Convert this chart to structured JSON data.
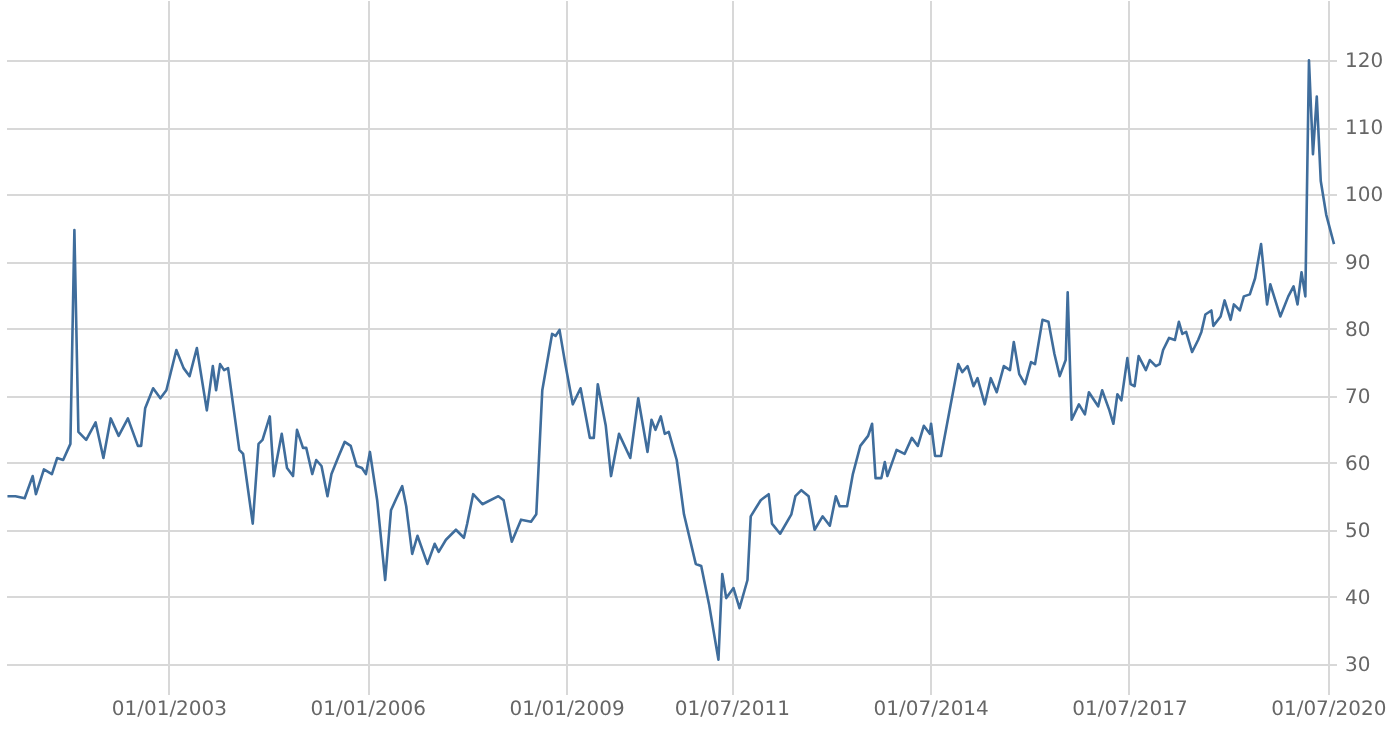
{
  "chart_data": {
    "type": "line",
    "x": [
      "2000-07-28",
      "2000-09-10",
      "2000-10-31",
      "2000-12-14",
      "2001-01-01",
      "2001-02-14",
      "2001-03-30",
      "2001-04-28",
      "2001-05-31",
      "2001-07-10",
      "2001-08-01",
      "2001-08-23",
      "2001-10-05",
      "2001-11-26",
      "2002-01-08",
      "2002-02-17",
      "2002-04-02",
      "2002-05-23",
      "2002-07-17",
      "2002-08-04",
      "2002-08-26",
      "2002-10-09",
      "2002-11-18",
      "2002-12-21",
      "2003-02-14",
      "2003-03-26",
      "2003-04-28",
      "2003-06-07",
      "2003-08-01",
      "2003-09-03",
      "2003-09-21",
      "2003-10-13",
      "2003-11-04",
      "2003-11-26",
      "2004-01-27",
      "2004-02-17",
      "2004-04-10",
      "2004-05-12",
      "2004-06-03",
      "2004-07-13",
      "2004-08-04",
      "2004-09-17",
      "2004-10-16",
      "2004-11-18",
      "2004-12-10",
      "2005-01-12",
      "2005-01-30",
      "2005-03-04",
      "2005-03-26",
      "2005-04-24",
      "2005-05-27",
      "2005-06-18",
      "2005-07-28",
      "2005-08-30",
      "2005-10-02",
      "2005-11-04",
      "2005-12-03",
      "2005-12-25",
      "2006-01-16",
      "2006-02-25",
      "2006-04-10",
      "2006-05-12",
      "2006-06-11",
      "2006-07-13",
      "2006-08-04",
      "2006-09-06",
      "2006-10-05",
      "2006-11-29",
      "2007-01-08",
      "2007-01-30",
      "2007-03-11",
      "2007-05-05",
      "2007-06-18",
      "2007-07-06",
      "2007-08-08",
      "2007-09-28",
      "2007-12-25",
      "2008-01-23",
      "2008-03-08",
      "2008-04-28",
      "2008-06-22",
      "2008-07-21",
      "2008-08-23",
      "2008-10-16",
      "2008-11-04",
      "2008-11-26",
      "2008-12-28",
      "2009-02-07",
      "2009-03-22",
      "2009-05-12",
      "2009-06-03",
      "2009-06-25",
      "2009-08-08",
      "2009-09-06",
      "2009-10-20",
      "2009-12-21",
      "2010-02-03",
      "2010-03-26",
      "2010-04-17",
      "2010-05-09",
      "2010-06-07",
      "2010-06-29",
      "2010-07-21",
      "2010-09-03",
      "2010-10-13",
      "2010-12-17",
      "2011-01-16",
      "2011-02-28",
      "2011-04-21",
      "2011-05-12",
      "2011-06-03",
      "2011-07-13",
      "2011-08-15",
      "2011-09-28",
      "2011-10-16",
      "2011-12-10",
      "2012-01-23",
      "2012-02-10",
      "2012-03-26",
      "2012-05-27",
      "2012-06-18",
      "2012-07-21",
      "2012-08-30",
      "2012-10-02",
      "2012-11-15",
      "2012-12-25",
      "2013-01-27",
      "2013-02-17",
      "2013-03-30",
      "2013-05-01",
      "2013-06-11",
      "2013-07-24",
      "2013-08-15",
      "2013-09-03",
      "2013-10-05",
      "2013-10-24",
      "2013-11-07",
      "2013-12-28",
      "2014-02-10",
      "2014-03-22",
      "2014-04-24",
      "2014-05-27",
      "2014-06-29",
      "2014-07-06",
      "2014-07-28",
      "2014-08-30",
      "2014-12-03",
      "2014-12-25",
      "2015-01-23",
      "2015-02-25",
      "2015-03-19",
      "2015-04-28",
      "2015-05-31",
      "2015-07-03",
      "2015-08-11",
      "2015-09-14",
      "2015-10-05",
      "2015-11-04",
      "2015-12-06",
      "2016-01-08",
      "2016-01-30",
      "2016-03-11",
      "2016-04-13",
      "2016-05-16",
      "2016-06-14",
      "2016-07-17",
      "2016-07-28",
      "2016-08-19",
      "2016-09-28",
      "2016-10-31",
      "2016-11-22",
      "2016-12-21",
      "2017-01-12",
      "2017-02-03",
      "2017-03-15",
      "2017-04-06",
      "2017-04-28",
      "2017-05-20",
      "2017-06-22",
      "2017-07-10",
      "2017-08-01",
      "2017-08-23",
      "2017-10-02",
      "2017-10-24",
      "2017-11-26",
      "2017-12-17",
      "2018-01-05",
      "2018-02-07",
      "2018-03-11",
      "2018-04-02",
      "2018-04-21",
      "2018-05-12",
      "2018-06-14",
      "2018-07-17",
      "2018-08-04",
      "2018-08-26",
      "2018-09-28",
      "2018-10-09",
      "2018-11-18",
      "2018-12-10",
      "2019-01-12",
      "2019-01-30",
      "2019-03-04",
      "2019-03-26",
      "2019-04-28",
      "2019-05-27",
      "2019-06-29",
      "2019-08-01",
      "2019-08-19",
      "2019-10-13",
      "2019-11-26",
      "2019-12-25",
      "2020-01-16",
      "2020-02-07",
      "2020-02-28",
      "2020-03-19",
      "2020-04-10",
      "2020-05-01",
      "2020-05-23",
      "2020-06-22",
      "2020-08-04"
    ],
    "series": [
      {
        "color": "#3f6d9c",
        "values": [
          55.0,
          55.0,
          54.7,
          58.0,
          55.3,
          59.0,
          58.3,
          60.7,
          60.4,
          62.8,
          94.7,
          64.6,
          63.4,
          66.0,
          60.7,
          66.6,
          64.0,
          66.6,
          62.5,
          62.5,
          68.1,
          71.1,
          69.6,
          70.8,
          76.8,
          74.1,
          72.9,
          77.1,
          67.8,
          74.4,
          70.8,
          74.7,
          73.8,
          74.1,
          61.9,
          61.3,
          50.9,
          62.8,
          63.4,
          66.9,
          58.0,
          64.3,
          59.2,
          58.0,
          64.9,
          62.2,
          62.2,
          58.3,
          60.4,
          59.5,
          55.0,
          58.3,
          61.0,
          63.1,
          62.5,
          59.5,
          59.2,
          58.3,
          61.6,
          54.4,
          42.5,
          52.9,
          54.7,
          56.5,
          53.5,
          46.4,
          49.1,
          44.9,
          47.9,
          46.7,
          48.5,
          50.0,
          48.8,
          50.9,
          55.3,
          53.8,
          55.0,
          54.4,
          48.2,
          51.5,
          51.2,
          52.3,
          70.8,
          79.2,
          78.9,
          79.8,
          74.7,
          68.7,
          71.1,
          63.7,
          63.7,
          71.7,
          65.5,
          58.0,
          64.3,
          60.7,
          69.6,
          61.6,
          66.4,
          64.9,
          66.9,
          64.3,
          64.6,
          60.4,
          52.3,
          44.9,
          44.6,
          38.9,
          30.6,
          43.4,
          39.8,
          41.3,
          38.3,
          42.5,
          52.0,
          54.4,
          55.3,
          50.9,
          49.4,
          52.3,
          55.0,
          55.9,
          55.0,
          50.0,
          52.0,
          50.6,
          55.0,
          53.5,
          53.5,
          58.3,
          62.5,
          64.0,
          65.8,
          57.7,
          57.7,
          60.1,
          58.0,
          61.9,
          61.3,
          63.7,
          62.5,
          65.5,
          64.3,
          65.8,
          61.0,
          61.0,
          74.7,
          73.5,
          74.4,
          71.4,
          72.6,
          68.7,
          72.6,
          70.5,
          74.4,
          73.8,
          78.0,
          73.2,
          71.7,
          75.0,
          74.7,
          81.3,
          81.0,
          76.2,
          72.9,
          75.3,
          85.4,
          66.4,
          68.7,
          67.2,
          70.5,
          69.3,
          68.4,
          70.8,
          67.8,
          65.8,
          70.2,
          69.3,
          75.6,
          71.7,
          71.4,
          75.9,
          73.8,
          75.3,
          74.4,
          74.7,
          76.8,
          78.6,
          78.3,
          81.0,
          79.2,
          79.5,
          76.5,
          78.3,
          79.5,
          82.1,
          82.7,
          80.4,
          81.8,
          84.2,
          81.3,
          83.6,
          82.7,
          84.8,
          85.1,
          87.5,
          92.6,
          83.6,
          86.6,
          81.8,
          84.8,
          86.3,
          83.6,
          88.4,
          84.8,
          120.0,
          106.0,
          114.6,
          102.0,
          97.0,
          92.6
        ]
      }
    ],
    "xlim": [
      "2000-07-20",
      "2020-08-15"
    ],
    "xticks": [
      {
        "value": "2003-01-01",
        "label": "01/01/2003"
      },
      {
        "value": "2006-01-01",
        "label": "01/01/2006"
      },
      {
        "value": "2009-01-01",
        "label": "01/01/2009"
      },
      {
        "value": "2011-07-01",
        "label": "01/07/2011"
      },
      {
        "value": "2014-07-01",
        "label": "01/07/2014"
      },
      {
        "value": "2017-07-01",
        "label": "01/07/2017"
      },
      {
        "value": "2020-07-01",
        "label": "01/07/2020"
      }
    ],
    "ylim": [
      25.5,
      129
    ],
    "yticks": [
      30,
      40,
      50,
      60,
      70,
      80,
      90,
      100,
      110,
      120
    ],
    "grid": true,
    "line_style": "solid"
  }
}
